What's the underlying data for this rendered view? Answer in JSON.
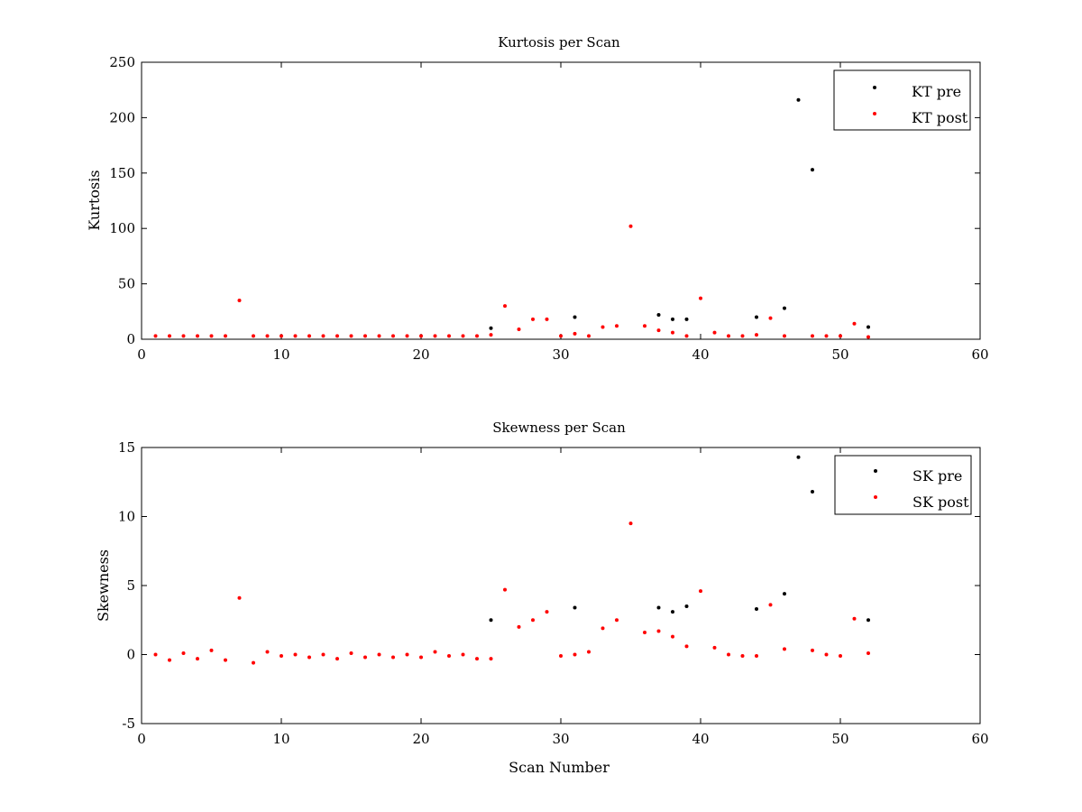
{
  "chart_data": [
    {
      "type": "scatter",
      "title": "Kurtosis per Scan",
      "xlabel": "",
      "ylabel": "Kurtosis",
      "xlim": [
        0,
        60
      ],
      "ylim": [
        0,
        250
      ],
      "xticks": [
        0,
        10,
        20,
        30,
        40,
        50,
        60
      ],
      "yticks": [
        0,
        50,
        100,
        150,
        200,
        250
      ],
      "grid": false,
      "legend_position": "top-right",
      "series": [
        {
          "name": "KT pre",
          "color": "#000000",
          "marker": "dot",
          "x": [
            25,
            31,
            37,
            38,
            39,
            44,
            46,
            47,
            48,
            52
          ],
          "y": [
            10,
            20,
            22,
            18,
            18,
            20,
            28,
            216,
            153,
            11
          ]
        },
        {
          "name": "KT post",
          "color": "#ff0000",
          "marker": "dot",
          "x": [
            1,
            2,
            3,
            4,
            5,
            6,
            7,
            8,
            9,
            10,
            11,
            12,
            13,
            14,
            15,
            16,
            17,
            18,
            19,
            20,
            21,
            22,
            23,
            24,
            25,
            26,
            27,
            28,
            29,
            30,
            31,
            32,
            33,
            34,
            35,
            36,
            37,
            38,
            39,
            40,
            41,
            42,
            43,
            44,
            45,
            46,
            48,
            49,
            50,
            51,
            52
          ],
          "y": [
            3,
            3,
            3,
            3,
            3,
            3,
            35,
            3,
            3,
            3,
            3,
            3,
            3,
            3,
            3,
            3,
            3,
            3,
            3,
            3,
            3,
            3,
            3,
            3,
            4,
            30,
            9,
            18,
            18,
            3,
            5,
            3,
            11,
            12,
            102,
            12,
            8,
            6,
            3,
            37,
            6,
            3,
            3,
            4,
            19,
            3,
            3,
            3,
            3,
            14,
            2
          ]
        }
      ]
    },
    {
      "type": "scatter",
      "title": "Skewness per Scan",
      "xlabel": "Scan Number",
      "ylabel": "Skewness",
      "xlim": [
        0,
        60
      ],
      "ylim": [
        -5,
        15
      ],
      "xticks": [
        0,
        10,
        20,
        30,
        40,
        50,
        60
      ],
      "yticks": [
        -5,
        0,
        5,
        10,
        15
      ],
      "grid": false,
      "legend_position": "top-right",
      "series": [
        {
          "name": "SK pre",
          "color": "#000000",
          "marker": "dot",
          "x": [
            25,
            31,
            37,
            38,
            39,
            44,
            46,
            47,
            48,
            52
          ],
          "y": [
            2.5,
            3.4,
            3.4,
            3.1,
            3.5,
            3.3,
            4.4,
            14.3,
            11.8,
            2.5
          ]
        },
        {
          "name": "SK post",
          "color": "#ff0000",
          "marker": "dot",
          "x": [
            1,
            2,
            3,
            4,
            5,
            6,
            7,
            8,
            9,
            10,
            11,
            12,
            13,
            14,
            15,
            16,
            17,
            18,
            19,
            20,
            21,
            22,
            23,
            24,
            25,
            26,
            27,
            28,
            29,
            30,
            31,
            32,
            33,
            34,
            35,
            36,
            37,
            38,
            39,
            40,
            41,
            42,
            43,
            44,
            45,
            46,
            48,
            49,
            50,
            51,
            52
          ],
          "y": [
            0,
            -0.4,
            0.1,
            -0.3,
            0.3,
            -0.4,
            4.1,
            -0.6,
            0.2,
            -0.1,
            0,
            -0.2,
            0,
            -0.3,
            0.1,
            -0.2,
            0,
            -0.2,
            0,
            -0.2,
            0.2,
            -0.1,
            0,
            -0.3,
            -0.3,
            4.7,
            2.0,
            2.5,
            3.1,
            -0.1,
            0,
            0.2,
            1.9,
            2.5,
            9.5,
            1.6,
            1.7,
            1.3,
            0.6,
            4.6,
            0.5,
            0,
            -0.1,
            -0.1,
            3.6,
            0.4,
            0.3,
            0,
            -0.1,
            2.6,
            0.1
          ]
        }
      ]
    }
  ]
}
